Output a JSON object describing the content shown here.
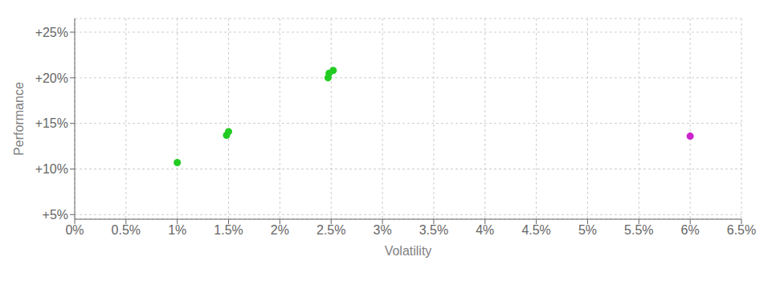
{
  "chart_data": {
    "type": "scatter",
    "xlabel": "Volatility",
    "ylabel": "Performance",
    "xlim": [
      0.0,
      0.065
    ],
    "ylim": [
      0.045,
      0.265
    ],
    "xticks": [
      {
        "value": 0.0,
        "label": "0%"
      },
      {
        "value": 0.005,
        "label": "0.5%"
      },
      {
        "value": 0.01,
        "label": "1%"
      },
      {
        "value": 0.015,
        "label": "1.5%"
      },
      {
        "value": 0.02,
        "label": "2%"
      },
      {
        "value": 0.025,
        "label": "2.5%"
      },
      {
        "value": 0.03,
        "label": "3%"
      },
      {
        "value": 0.035,
        "label": "3.5%"
      },
      {
        "value": 0.04,
        "label": "4%"
      },
      {
        "value": 0.045,
        "label": "4.5%"
      },
      {
        "value": 0.05,
        "label": "5%"
      },
      {
        "value": 0.055,
        "label": "5.5%"
      },
      {
        "value": 0.06,
        "label": "6%"
      },
      {
        "value": 0.065,
        "label": "6.5%"
      }
    ],
    "yticks": [
      {
        "value": 0.05,
        "label": "+5%"
      },
      {
        "value": 0.1,
        "label": "+10%"
      },
      {
        "value": 0.15,
        "label": "+15%"
      },
      {
        "value": 0.2,
        "label": "+20%"
      },
      {
        "value": 0.25,
        "label": "+25%"
      }
    ],
    "grid": true,
    "series": [
      {
        "color": "#22cc22",
        "x": [
          0.0252,
          0.0248,
          0.0247,
          0.015,
          0.0148,
          0.01
        ],
        "y": [
          0.208,
          0.205,
          0.2,
          0.141,
          0.137,
          0.107
        ]
      },
      {
        "color": "#cc22cc",
        "x": [
          0.06
        ],
        "y": [
          0.136
        ]
      }
    ]
  }
}
